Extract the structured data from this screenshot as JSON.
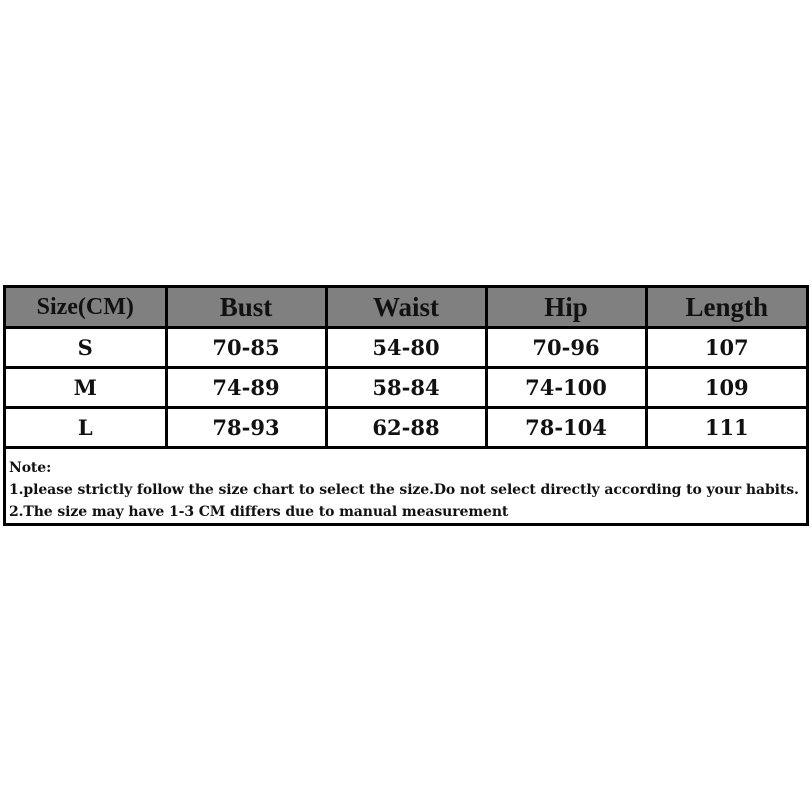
{
  "table": {
    "headers": [
      "Size(CM)",
      "Bust",
      "Waist",
      "Hip",
      "Length"
    ],
    "rows": [
      [
        "S",
        "70-85",
        "54-80",
        "70-96",
        "107"
      ],
      [
        "M",
        "74-89",
        "58-84",
        "74-100",
        "109"
      ],
      [
        "L",
        "78-93",
        "62-88",
        "78-104",
        "111"
      ]
    ],
    "header_bg": "#808080"
  },
  "notes": {
    "title": "Note:",
    "lines": [
      "1.please strictly follow the size chart to select the size.Do not select directly according to your habits.",
      "2.The size may have 1-3 CM differs due to manual measurement"
    ]
  }
}
